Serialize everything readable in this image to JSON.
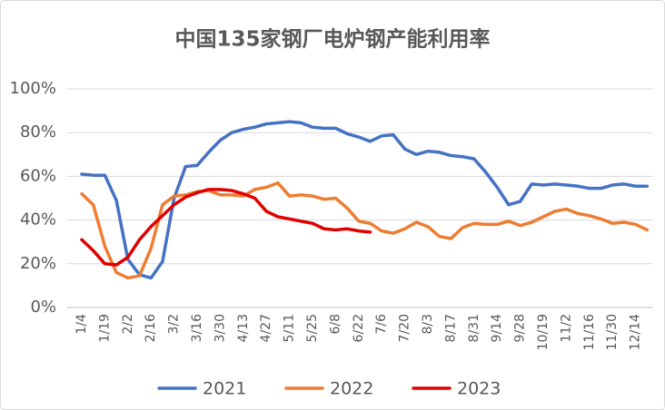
{
  "chart_data": {
    "type": "line",
    "title": "中国135家钢厂电炉钢产能利用率",
    "categories": [
      "1/4",
      null,
      "1/19",
      null,
      "2/2",
      null,
      "2/16",
      null,
      "3/2",
      null,
      "3/16",
      null,
      "3/30",
      null,
      "4/13",
      null,
      "4/27",
      null,
      "5/11",
      null,
      "5/25",
      null,
      "6/8",
      null,
      "6/22",
      null,
      "7/6",
      null,
      "7/20",
      null,
      "8/3",
      null,
      "8/17",
      null,
      "8/31",
      null,
      "9/14",
      null,
      "9/28",
      null,
      "10/19",
      null,
      "11/2",
      null,
      "11/16",
      null,
      "11/30",
      null,
      "12/14",
      null
    ],
    "series": [
      {
        "name": "2021",
        "color": "#4472c4",
        "values": [
          61,
          60.5,
          60.5,
          49,
          22,
          15,
          13.5,
          21,
          50,
          64.5,
          65,
          71,
          76.5,
          80,
          81.5,
          82.5,
          84,
          84.5,
          85,
          84.5,
          82.5,
          82,
          82,
          79.5,
          78,
          76,
          78.5,
          79,
          72.5,
          70,
          71.5,
          71,
          69.5,
          69,
          68,
          62,
          55,
          47,
          48.5,
          56.5,
          56,
          56.5,
          56,
          55.5,
          54.5,
          54.5,
          56,
          56.5,
          55.5,
          55.5
        ]
      },
      {
        "name": "2022",
        "color": "#ed7d31",
        "values": [
          52,
          47,
          28,
          16,
          13.5,
          14.5,
          27,
          47,
          51,
          51.5,
          53,
          53.5,
          51.5,
          51.5,
          51,
          54,
          55,
          57,
          51,
          51.5,
          51,
          49.5,
          50,
          45.5,
          39.5,
          38.5,
          35,
          34,
          36,
          39,
          37,
          32.5,
          31.5,
          36.5,
          38.5,
          38,
          38,
          39.5,
          37.5,
          39,
          41.5,
          44,
          45,
          43,
          42,
          40.5,
          38.5,
          39,
          38,
          35.5
        ]
      },
      {
        "name": "2023",
        "color": "#e00000",
        "values": [
          31,
          26,
          20,
          19.5,
          23,
          31,
          37,
          42,
          47,
          50.5,
          52.5,
          54,
          54,
          53.5,
          52,
          50,
          44,
          41.5,
          40.5,
          39.5,
          38.5,
          36,
          35.5,
          36,
          35,
          34.5,
          null,
          null,
          null,
          null,
          null,
          null,
          null,
          null,
          null,
          null,
          null,
          null,
          null,
          null,
          null,
          null,
          null,
          null,
          null,
          null,
          null,
          null,
          null,
          null
        ]
      }
    ],
    "ylim": [
      0,
      100
    ],
    "yticks": [
      {
        "value": 0,
        "label": "0%"
      },
      {
        "value": 20,
        "label": "20%"
      },
      {
        "value": 40,
        "label": "40%"
      },
      {
        "value": 60,
        "label": "60%"
      },
      {
        "value": 80,
        "label": "80%"
      },
      {
        "value": 100,
        "label": "100%"
      }
    ],
    "grid": true,
    "legend": "bottom"
  }
}
